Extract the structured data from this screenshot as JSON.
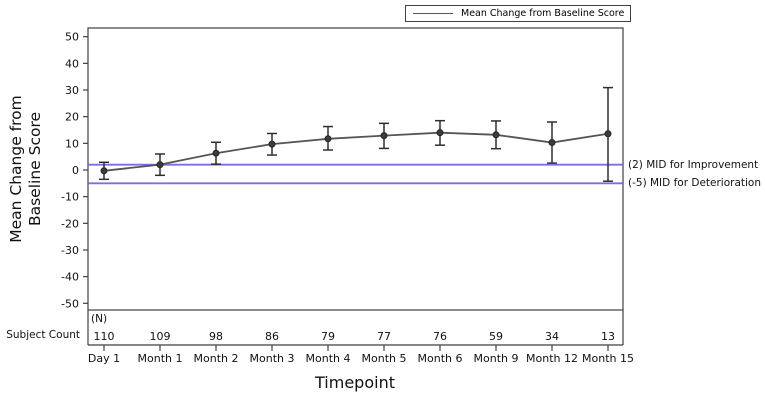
{
  "colors": {
    "series": "#555555",
    "marker_fill": "#3d3d3d",
    "error_bar": "#2e2e2e",
    "reference": "#6a5fe8",
    "axis": "#3f3f3f",
    "text": "#111111"
  },
  "legend": {
    "label": "Mean Change from Baseline Score"
  },
  "y_axis_title": {
    "line1": "Mean Change from",
    "line2": "Baseline Score"
  },
  "x_axis_title": "Timepoint",
  "subject_count": {
    "row_label": "Subject Count",
    "unit_label": "(N)",
    "counts": [
      110,
      109,
      98,
      86,
      79,
      77,
      76,
      59,
      34,
      13
    ]
  },
  "chart_data": {
    "type": "line",
    "title": "",
    "categories": [
      "Day 1",
      "Month 1",
      "Month 2",
      "Month 3",
      "Month 4",
      "Month 5",
      "Month 6",
      "Month 9",
      "Month 12",
      "Month 15"
    ],
    "series": [
      {
        "name": "Mean Change from Baseline Score",
        "values": [
          -0.3,
          2.0,
          6.3,
          9.7,
          11.7,
          12.9,
          14.0,
          13.2,
          10.3,
          13.6
        ],
        "error_low": [
          -3.5,
          -2.0,
          2.2,
          5.6,
          7.5,
          8.1,
          9.3,
          8.0,
          2.6,
          -4.2
        ],
        "error_high": [
          2.9,
          6.0,
          10.4,
          13.7,
          16.3,
          17.5,
          18.5,
          18.4,
          18.0,
          30.9
        ]
      }
    ],
    "xlabel": "Timepoint",
    "ylabel": "Mean Change from Baseline Score",
    "ylim": [
      -50,
      50
    ],
    "yticks": [
      50,
      40,
      30,
      20,
      10,
      0,
      -10,
      -20,
      -30,
      -40,
      -50
    ],
    "grid": false,
    "legend_position": "top-right",
    "reference_lines": [
      {
        "value": 2,
        "label": "(2) MID for Improvement"
      },
      {
        "value": -5,
        "label": "(-5) MID for Deterioration"
      }
    ],
    "subject_counts": [
      110,
      109,
      98,
      86,
      79,
      77,
      76,
      59,
      34,
      13
    ],
    "subject_counts_header": "(N)"
  }
}
